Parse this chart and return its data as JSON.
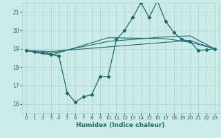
{
  "xlabel": "Humidex (Indice chaleur)",
  "ylabel": "",
  "bg_color": "#cceae7",
  "grid_color": "#aad4d0",
  "line_color": "#1a6b6b",
  "xlim": [
    -0.5,
    23.5
  ],
  "ylim": [
    15.5,
    21.5
  ],
  "xticks": [
    0,
    1,
    2,
    3,
    4,
    5,
    6,
    7,
    8,
    9,
    10,
    11,
    12,
    13,
    14,
    15,
    16,
    17,
    18,
    19,
    20,
    21,
    22,
    23
  ],
  "yticks": [
    16,
    17,
    18,
    19,
    20,
    21
  ],
  "main_line": {
    "x": [
      0,
      1,
      2,
      3,
      4,
      5,
      6,
      7,
      8,
      9,
      10,
      11,
      12,
      13,
      14,
      15,
      16,
      17,
      18,
      19,
      20,
      21,
      22,
      23
    ],
    "y": [
      18.9,
      18.85,
      18.8,
      18.7,
      18.6,
      16.6,
      16.1,
      16.4,
      16.5,
      17.5,
      17.5,
      19.5,
      20.0,
      20.7,
      21.5,
      20.7,
      21.6,
      20.5,
      19.9,
      19.5,
      19.4,
      18.9,
      18.95,
      19.0
    ]
  },
  "reg_lines": [
    {
      "x": [
        0,
        3,
        10,
        17,
        20,
        23
      ],
      "y": [
        18.9,
        18.85,
        19.1,
        19.35,
        19.45,
        19.0
      ]
    },
    {
      "x": [
        0,
        3,
        10,
        17,
        20,
        23
      ],
      "y": [
        18.9,
        18.75,
        19.4,
        19.65,
        19.7,
        19.0
      ]
    },
    {
      "x": [
        0,
        3,
        10,
        17,
        20,
        23
      ],
      "y": [
        18.9,
        18.65,
        19.6,
        19.55,
        19.35,
        19.0
      ]
    }
  ]
}
